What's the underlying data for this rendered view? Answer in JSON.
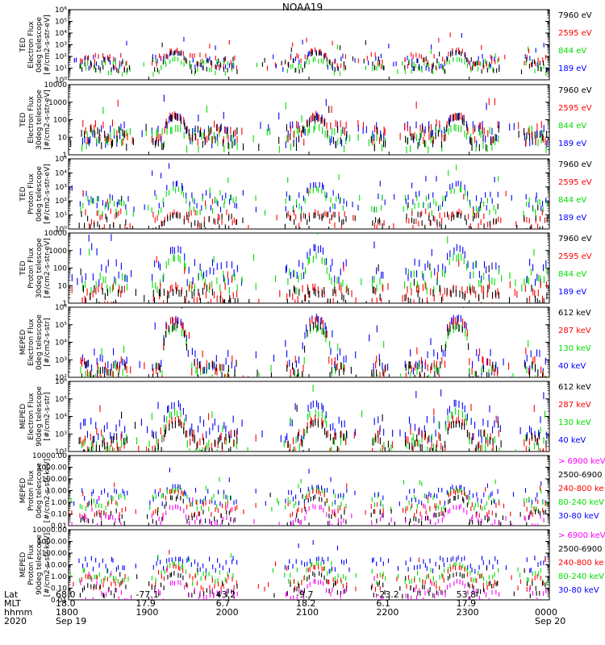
{
  "title": "NOAA19",
  "chart_data": [
    {
      "type": "scatter",
      "ylabel": [
        "TED",
        "Electron Flux",
        "0deg telescope",
        "[#/cm2-s-str-eV]"
      ],
      "log": true,
      "ylim": [
        1,
        1000000
      ],
      "yticks": [
        {
          "v": 1,
          "label": "10⁰"
        },
        {
          "v": 10,
          "label": "10¹"
        },
        {
          "v": 100,
          "label": "10²"
        },
        {
          "v": 1000,
          "label": "10³"
        },
        {
          "v": 10000,
          "label": "10⁴"
        },
        {
          "v": 100000,
          "label": "10⁵"
        },
        {
          "v": 1000000,
          "label": "10⁶"
        }
      ],
      "series": [
        {
          "name": "7960 eV",
          "color": "#000000",
          "baseline": 20,
          "bump": 250
        },
        {
          "name": "2595 eV",
          "color": "#ff0000",
          "baseline": 40,
          "bump": 400
        },
        {
          "name": "844 eV",
          "color": "#00dd00",
          "baseline": 12,
          "bump": 60
        },
        {
          "name": "189 eV",
          "color": "#0000ff",
          "baseline": 30,
          "bump": 300
        }
      ]
    },
    {
      "type": "scatter",
      "ylabel": [
        "TED",
        "Electron Flux",
        "30deg telescope",
        "[#/cm2-s-str-eV]"
      ],
      "log": true,
      "ylim": [
        1,
        10000
      ],
      "yticks": [
        {
          "v": 1,
          "label": "1"
        },
        {
          "v": 10,
          "label": "10"
        },
        {
          "v": 100,
          "label": "100"
        },
        {
          "v": 1000,
          "label": "1000"
        },
        {
          "v": 10000,
          "label": "10000"
        }
      ],
      "series": [
        {
          "name": "7960 eV",
          "color": "#000000",
          "baseline": 10,
          "bump": 150
        },
        {
          "name": "2595 eV",
          "color": "#ff0000",
          "baseline": 20,
          "bump": 200
        },
        {
          "name": "844 eV",
          "color": "#00dd00",
          "baseline": 8,
          "bump": 40
        },
        {
          "name": "189 eV",
          "color": "#0000ff",
          "baseline": 15,
          "bump": 180
        }
      ]
    },
    {
      "type": "scatter",
      "ylabel": [
        "TED",
        "Proton Flux",
        "0deg telescope",
        "[#/cm2-s-str-eV]"
      ],
      "log": true,
      "ylim": [
        1,
        100000
      ],
      "yticks": [
        {
          "v": 1,
          "label": "10⁰"
        },
        {
          "v": 10,
          "label": "10¹"
        },
        {
          "v": 100,
          "label": "10²"
        },
        {
          "v": 1000,
          "label": "10³"
        },
        {
          "v": 10000,
          "label": "10⁴"
        },
        {
          "v": 100000,
          "label": "10⁵"
        }
      ],
      "series": [
        {
          "name": "7960 eV",
          "color": "#000000",
          "baseline": 3,
          "bump": 10
        },
        {
          "name": "2595 eV",
          "color": "#ff0000",
          "baseline": 5,
          "bump": 15
        },
        {
          "name": "844 eV",
          "color": "#00dd00",
          "baseline": 50,
          "bump": 800
        },
        {
          "name": "189 eV",
          "color": "#0000ff",
          "baseline": 100,
          "bump": 2000
        }
      ]
    },
    {
      "type": "scatter",
      "ylabel": [
        "TED",
        "Proton Flux",
        "30deg telescope",
        "[#/cm2-s-str-eV]"
      ],
      "log": true,
      "ylim": [
        1,
        10000
      ],
      "yticks": [
        {
          "v": 1,
          "label": "1"
        },
        {
          "v": 10,
          "label": "10"
        },
        {
          "v": 100,
          "label": "100"
        },
        {
          "v": 1000,
          "label": "1000"
        },
        {
          "v": 10000,
          "label": "10000"
        }
      ],
      "series": [
        {
          "name": "7960 eV",
          "color": "#000000",
          "baseline": 2,
          "bump": 5
        },
        {
          "name": "2595 eV",
          "color": "#ff0000",
          "baseline": 3,
          "bump": 8
        },
        {
          "name": "844 eV",
          "color": "#00dd00",
          "baseline": 20,
          "bump": 500
        },
        {
          "name": "189 eV",
          "color": "#0000ff",
          "baseline": 60,
          "bump": 1500
        }
      ]
    },
    {
      "type": "scatter",
      "ylabel": [
        "MEPED",
        "Electron Flux",
        "0deg telescope",
        "[#/cm2-s-str]"
      ],
      "log": true,
      "ylim": [
        100,
        1000000
      ],
      "yticks": [
        {
          "v": 100,
          "label": "10²"
        },
        {
          "v": 1000,
          "label": "10³"
        },
        {
          "v": 10000,
          "label": "10⁴"
        },
        {
          "v": 100000,
          "label": "10⁵"
        },
        {
          "v": 1000000,
          "label": "10⁶"
        }
      ],
      "series": [
        {
          "name": "612 keV",
          "color": "#000000",
          "baseline": 200,
          "bump": 100000
        },
        {
          "name": "287 keV",
          "color": "#ff0000",
          "baseline": 300,
          "bump": 200000
        },
        {
          "name": "130 keV",
          "color": "#00dd00",
          "baseline": 120,
          "bump": 80000
        },
        {
          "name": "40 keV",
          "color": "#0000ff",
          "baseline": 800,
          "bump": 250000
        }
      ]
    },
    {
      "type": "scatter",
      "ylabel": [
        "MEPED",
        "Electron Flux",
        "90deg telescope",
        "[#/cm2-s-str]"
      ],
      "log": true,
      "ylim": [
        100,
        1000000
      ],
      "yticks": [
        {
          "v": 100,
          "label": "10²"
        },
        {
          "v": 1000,
          "label": "10³"
        },
        {
          "v": 10000,
          "label": "10⁴"
        },
        {
          "v": 100000,
          "label": "10⁵"
        },
        {
          "v": 1000000,
          "label": "10⁶"
        }
      ],
      "series": [
        {
          "name": "612 keV",
          "color": "#000000",
          "baseline": 300,
          "bump": 5000
        },
        {
          "name": "287 keV",
          "color": "#ff0000",
          "baseline": 400,
          "bump": 8000
        },
        {
          "name": "130 keV",
          "color": "#00dd00",
          "baseline": 200,
          "bump": 20000
        },
        {
          "name": "40 keV",
          "color": "#0000ff",
          "baseline": 2000,
          "bump": 60000
        }
      ]
    },
    {
      "type": "scatter",
      "ylabel": [
        "MEPED",
        "Proton Flux",
        "0deg telescope",
        "[#/cm2-s-str-keV]"
      ],
      "log": true,
      "ylim": [
        0.01,
        10000
      ],
      "yticks": [
        {
          "v": 0.01,
          "label": "0.01"
        },
        {
          "v": 0.1,
          "label": "0.10"
        },
        {
          "v": 1,
          "label": "1.00"
        },
        {
          "v": 10,
          "label": "10.00"
        },
        {
          "v": 100,
          "label": "100.00"
        },
        {
          "v": 1000,
          "label": "1000.00"
        },
        {
          "v": 10000,
          "label": "10000.00"
        }
      ],
      "series": [
        {
          "name": "> 6900 keV",
          "color": "#ff00ff",
          "baseline": 0.02,
          "bump": 0.5
        },
        {
          "name": "2500-6900",
          "color": "#000000",
          "baseline": 0.05,
          "bump": 3
        },
        {
          "name": "240-800 ke",
          "color": "#ff0000",
          "baseline": 0.3,
          "bump": 10
        },
        {
          "name": "80-240 keV",
          "color": "#00dd00",
          "baseline": 1,
          "bump": 15
        },
        {
          "name": "30-80 keV",
          "color": "#0000ff",
          "baseline": 3,
          "bump": 25
        }
      ]
    },
    {
      "type": "scatter",
      "ylabel": [
        "MEPED",
        "Proton Flux",
        "90deg telescope",
        "[#/cm2-s-str-keV]"
      ],
      "log": true,
      "ylim": [
        0.01,
        10000
      ],
      "yticks": [
        {
          "v": 0.01,
          "label": "0.01"
        },
        {
          "v": 0.1,
          "label": "0.10"
        },
        {
          "v": 1,
          "label": "1.00"
        },
        {
          "v": 10,
          "label": "10.00"
        },
        {
          "v": 100,
          "label": "100.00"
        },
        {
          "v": 1000,
          "label": "1000.00"
        },
        {
          "v": 10000,
          "label": "10000.00"
        }
      ],
      "series": [
        {
          "name": "> 6900 keV",
          "color": "#ff00ff",
          "baseline": 0.02,
          "bump": 0.4
        },
        {
          "name": "2500-6900",
          "color": "#000000",
          "baseline": 0.08,
          "bump": 2
        },
        {
          "name": "240-800 ke",
          "color": "#ff0000",
          "baseline": 0.3,
          "bump": 8
        },
        {
          "name": "80-240 keV",
          "color": "#00dd00",
          "baseline": 1,
          "bump": 15
        },
        {
          "name": "30-80 keV",
          "color": "#0000ff",
          "baseline": 10,
          "bump": 40
        }
      ]
    }
  ],
  "footer": {
    "row_labels": [
      "Lat",
      "MLT",
      "hhmm",
      "2020"
    ],
    "columns": [
      {
        "lat": "68.0",
        "mlt": "18.0",
        "hhmm": "1800",
        "date": "Sep 19"
      },
      {
        "lat": "-77.1",
        "mlt": "17.9",
        "hhmm": "1900",
        "date": ""
      },
      {
        "lat": "43.2",
        "mlt": "6.7",
        "hhmm": "2000",
        "date": ""
      },
      {
        "lat": "-9.7",
        "mlt": "18.2",
        "hhmm": "2100",
        "date": ""
      },
      {
        "lat": "-23.2",
        "mlt": "6.1",
        "hhmm": "2200",
        "date": ""
      },
      {
        "lat": "53.8",
        "mlt": "17.9",
        "hhmm": "2300",
        "date": ""
      },
      {
        "lat": "",
        "mlt": "",
        "hhmm": "0000",
        "date": "Sep 20"
      }
    ]
  }
}
